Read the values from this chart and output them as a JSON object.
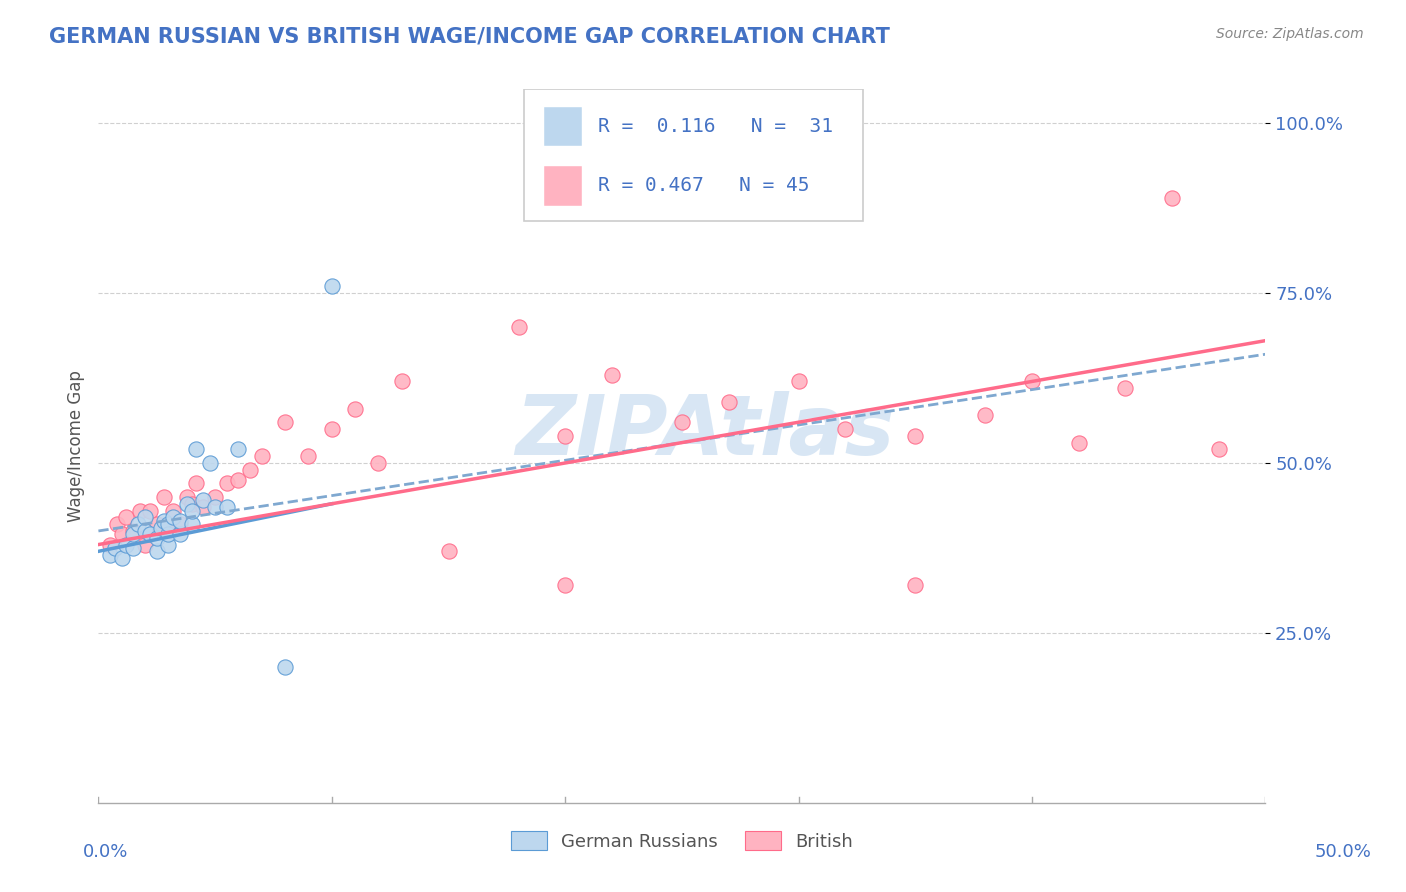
{
  "title": "GERMAN RUSSIAN VS BRITISH WAGE/INCOME GAP CORRELATION CHART",
  "source": "Source: ZipAtlas.com",
  "ylabel": "Wage/Income Gap",
  "xlim": [
    0.0,
    0.5
  ],
  "ylim": [
    0.0,
    1.05
  ],
  "ytick_vals": [
    0.25,
    0.5,
    0.75,
    1.0
  ],
  "ytick_labels": [
    "25.0%",
    "50.0%",
    "75.0%",
    "100.0%"
  ],
  "blue_color": "#5B9BD5",
  "blue_fill": "#BDD7EE",
  "pink_color": "#FF6B8A",
  "pink_fill": "#FFB3C1",
  "grey_line_color": "#999999",
  "watermark_color": "#C8DCF0",
  "watermark_text": "ZIPAtlas",
  "legend_text1": "R =  0.116   N =  31",
  "legend_text2": "R = 0.467   N = 45",
  "blue_scatter_x": [
    0.005,
    0.007,
    0.01,
    0.012,
    0.015,
    0.015,
    0.017,
    0.02,
    0.02,
    0.022,
    0.025,
    0.025,
    0.027,
    0.028,
    0.03,
    0.03,
    0.03,
    0.032,
    0.035,
    0.035,
    0.038,
    0.04,
    0.04,
    0.042,
    0.045,
    0.048,
    0.05,
    0.055,
    0.06,
    0.08,
    0.1
  ],
  "blue_scatter_y": [
    0.365,
    0.375,
    0.36,
    0.38,
    0.375,
    0.395,
    0.41,
    0.4,
    0.42,
    0.395,
    0.37,
    0.39,
    0.405,
    0.415,
    0.38,
    0.395,
    0.41,
    0.42,
    0.395,
    0.415,
    0.44,
    0.41,
    0.43,
    0.52,
    0.445,
    0.5,
    0.435,
    0.435,
    0.52,
    0.2,
    0.76
  ],
  "pink_scatter_x": [
    0.005,
    0.008,
    0.01,
    0.012,
    0.015,
    0.018,
    0.02,
    0.022,
    0.025,
    0.028,
    0.03,
    0.032,
    0.035,
    0.038,
    0.04,
    0.042,
    0.045,
    0.05,
    0.055,
    0.06,
    0.065,
    0.07,
    0.08,
    0.09,
    0.1,
    0.11,
    0.12,
    0.13,
    0.15,
    0.18,
    0.2,
    0.22,
    0.25,
    0.27,
    0.3,
    0.32,
    0.35,
    0.38,
    0.4,
    0.42,
    0.44,
    0.46,
    0.48,
    0.35,
    0.2
  ],
  "pink_scatter_y": [
    0.38,
    0.41,
    0.395,
    0.42,
    0.4,
    0.43,
    0.38,
    0.43,
    0.41,
    0.45,
    0.4,
    0.43,
    0.41,
    0.45,
    0.44,
    0.47,
    0.435,
    0.45,
    0.47,
    0.475,
    0.49,
    0.51,
    0.56,
    0.51,
    0.55,
    0.58,
    0.5,
    0.62,
    0.37,
    0.7,
    0.54,
    0.63,
    0.56,
    0.59,
    0.62,
    0.55,
    0.54,
    0.57,
    0.62,
    0.53,
    0.61,
    0.89,
    0.52,
    0.32,
    0.32
  ],
  "blue_line_x0": 0.0,
  "blue_line_x1": 0.1,
  "blue_line_y0": 0.37,
  "blue_line_y1": 0.44,
  "dashed_line_x0": 0.0,
  "dashed_line_x1": 0.5,
  "dashed_line_y0": 0.4,
  "dashed_line_y1": 0.66,
  "pink_line_x0": 0.0,
  "pink_line_x1": 0.5,
  "pink_line_y0": 0.38,
  "pink_line_y1": 0.68
}
